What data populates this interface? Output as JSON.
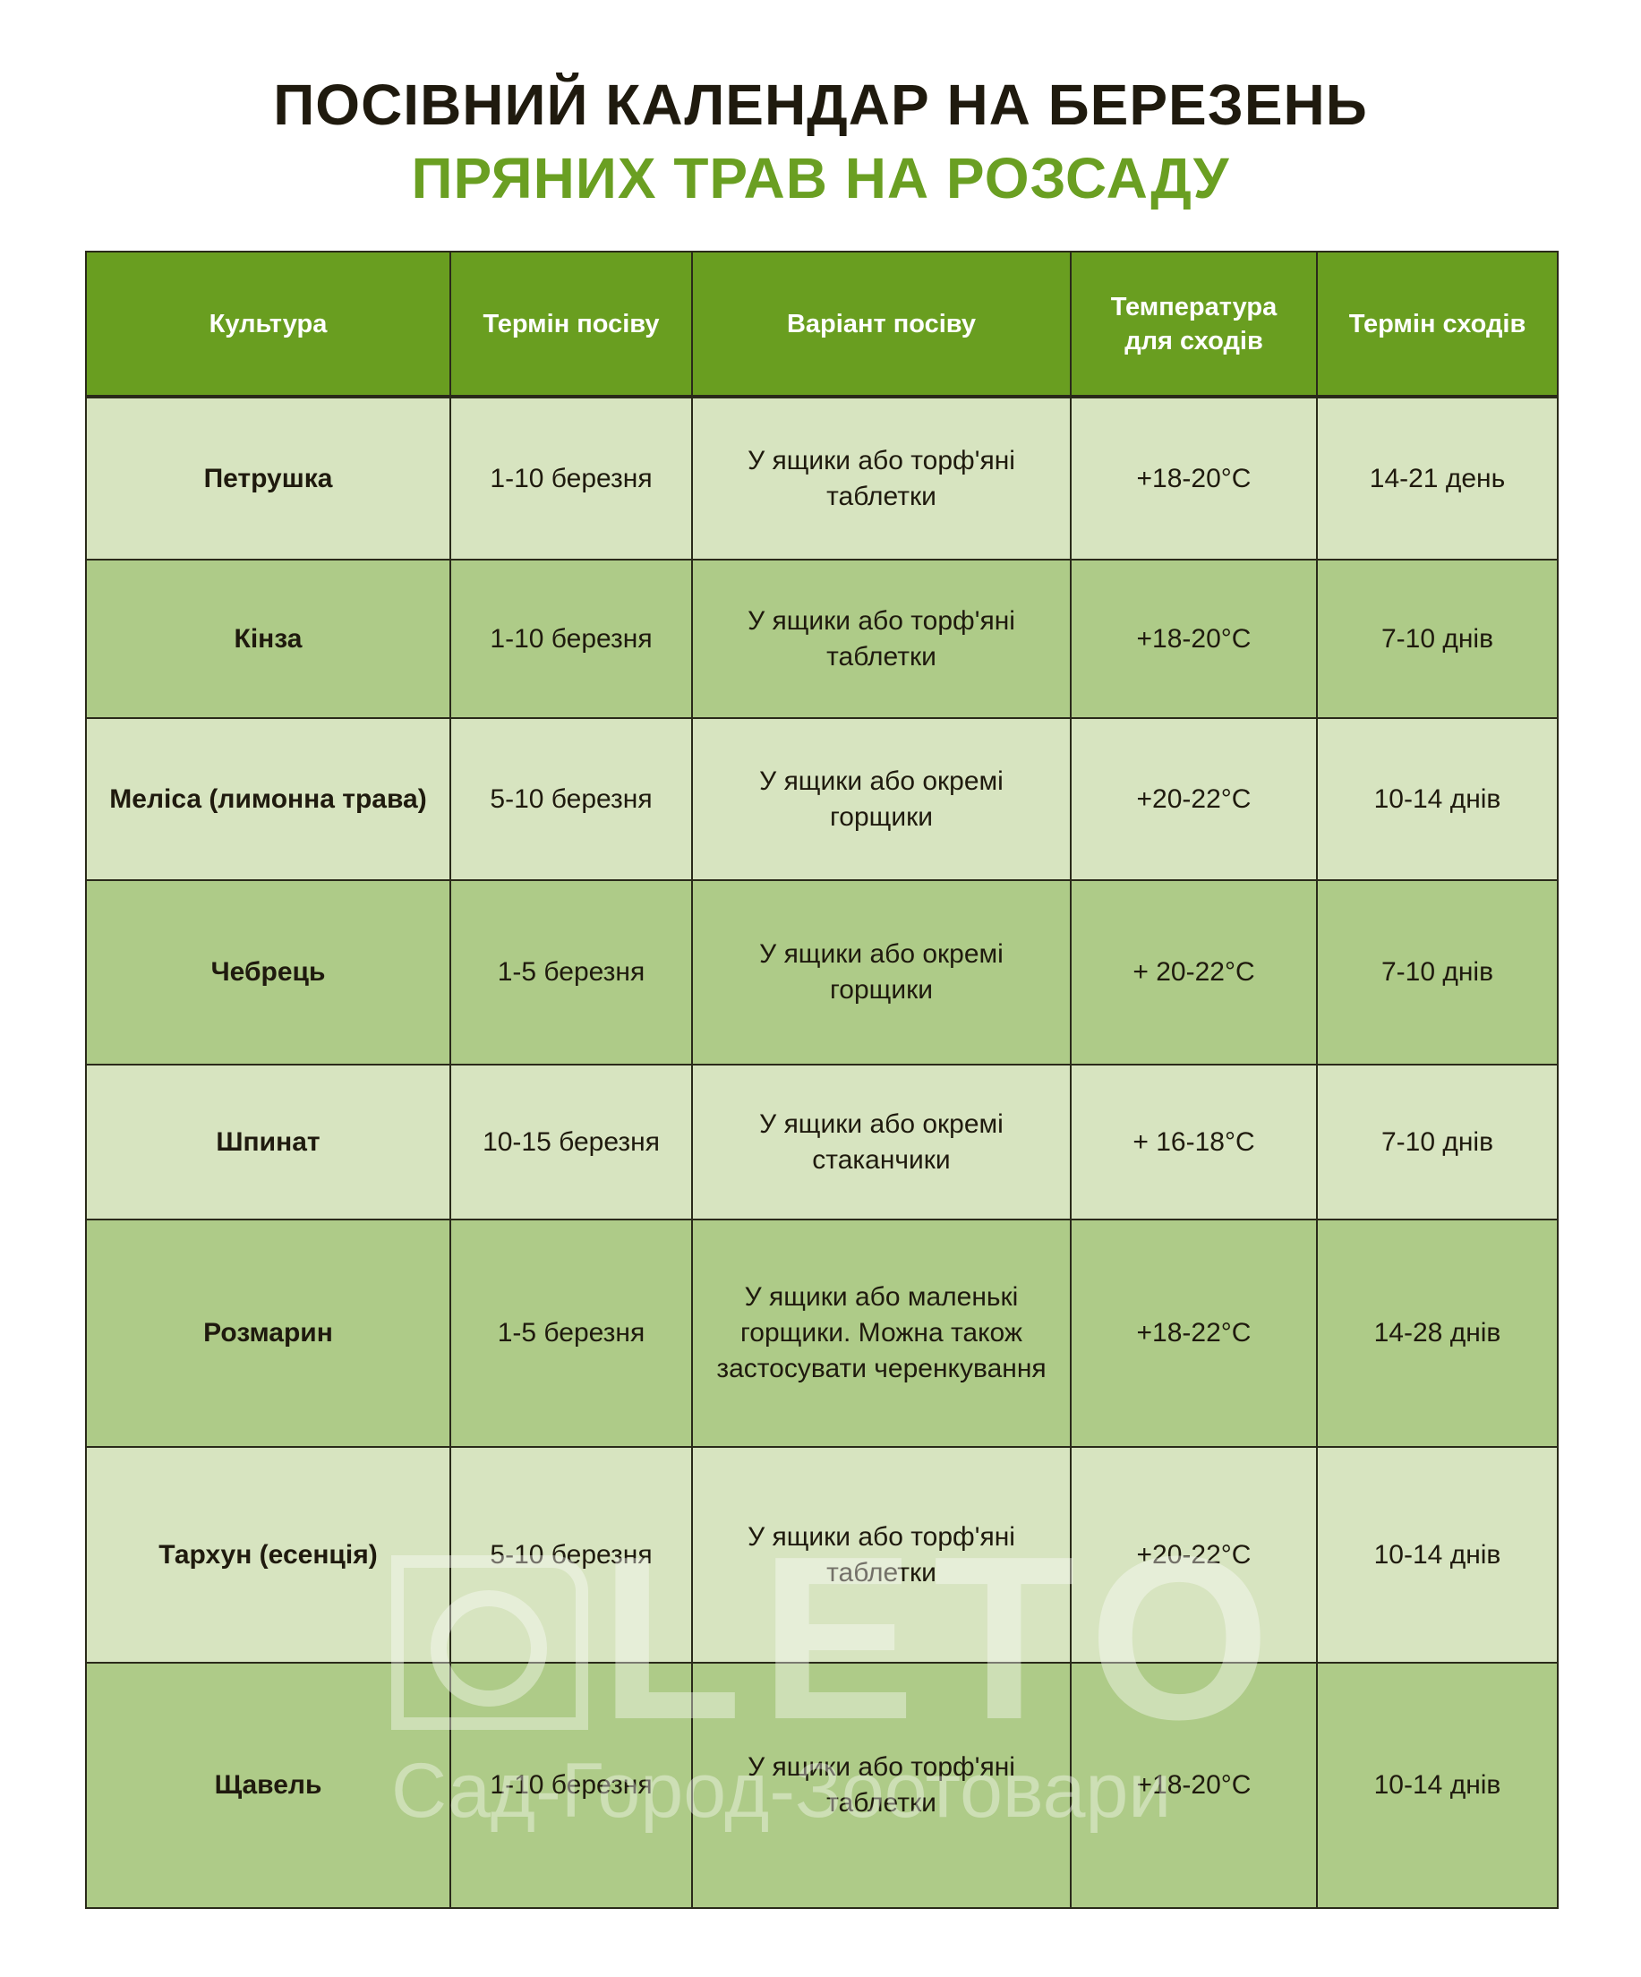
{
  "title": {
    "line1": "ПОСІВНИЙ КАЛЕНДАР НА БЕРЕЗЕНЬ",
    "line2": "ПРЯНИХ ТРАВ НА РОЗСАДУ"
  },
  "colors": {
    "header": "#699e20",
    "title_accent": "#6a9f22",
    "row_light": "#d7e4c0",
    "row_dark": "#aecb88"
  },
  "table": {
    "headers": [
      "Культура",
      "Термін посіву",
      "Варіант посіву",
      "Температура для сходів",
      "Термін сходів"
    ],
    "rows": [
      {
        "crop": "Петрушка",
        "sowing": "1-10 березня",
        "method": "У ящики або торф'яні таблетки",
        "temp": "+18-20°C",
        "emergence": "14-21 день"
      },
      {
        "crop": "Кінза",
        "sowing": "1-10 березня",
        "method": "У ящики або торф'яні таблетки",
        "temp": "+18-20°C",
        "emergence": "7-10 днів"
      },
      {
        "crop": "Меліса (лимонна трава)",
        "sowing": "5-10 березня",
        "method": "У ящики або окремі горщики",
        "temp": "+20-22°C",
        "emergence": "10-14 днів"
      },
      {
        "crop": "Чебрець",
        "sowing": "1-5 березня",
        "method": "У ящики або окремі горщики",
        "temp": "+ 20-22°C",
        "emergence": "7-10 днів"
      },
      {
        "crop": "Шпинат",
        "sowing": "10-15 березня",
        "method": "У ящики або окремі стаканчики",
        "temp": "+  16-18°C",
        "emergence": "7-10 днів"
      },
      {
        "crop": "Розмарин",
        "sowing": "1-5 березня",
        "method": "У ящики або маленькі горщики. Можна також застосувати черенкування",
        "temp": "+18-22°C",
        "emergence": "14-28 днів"
      },
      {
        "crop": "Тархун (есенція)",
        "sowing": "5-10 березня",
        "method": "У ящики або торф'яні таблетки",
        "temp": "+20-22°C",
        "emergence": "10-14 днів"
      },
      {
        "crop": "Щавель",
        "sowing": "1-10 березня",
        "method": "У ящики або торф'яні таблетки",
        "temp": "+18-20°C",
        "emergence": "10-14 днів"
      }
    ]
  },
  "watermark": {
    "brand": "LETO",
    "tagline": "Сад-Город-Зоотовари"
  }
}
